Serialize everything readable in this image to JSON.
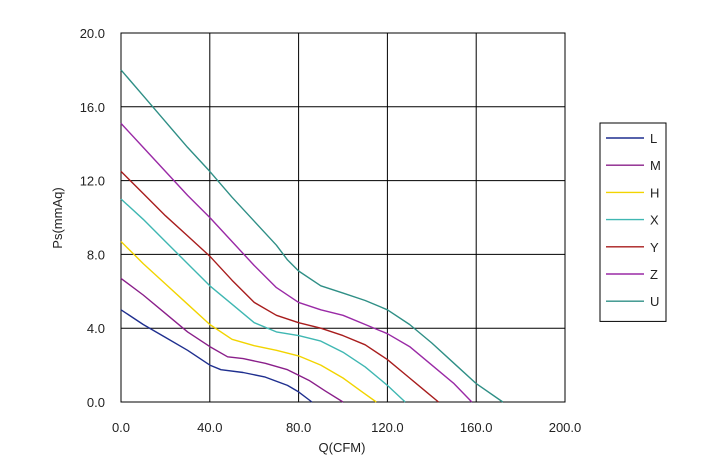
{
  "chart_data": {
    "type": "line",
    "xlabel": "Q(CFM)",
    "ylabel": "Ps(mmAq)",
    "xlim": [
      0,
      200
    ],
    "ylim": [
      0,
      20
    ],
    "x_ticks": [
      "0.0",
      "40.0",
      "80.0",
      "120.0",
      "160.0",
      "200.0"
    ],
    "y_ticks": [
      "0.0",
      "4.0",
      "8.0",
      "12.0",
      "16.0",
      "20.0"
    ],
    "grid": true,
    "legend_position": "right",
    "series": [
      {
        "name": "L",
        "color": "#1f2f8f",
        "points": [
          [
            0,
            5.0
          ],
          [
            10,
            4.2
          ],
          [
            20,
            3.5
          ],
          [
            30,
            2.8
          ],
          [
            40,
            2.0
          ],
          [
            45,
            1.75
          ],
          [
            55,
            1.6
          ],
          [
            65,
            1.35
          ],
          [
            75,
            0.9
          ],
          [
            80,
            0.55
          ],
          [
            86,
            0.0
          ]
        ]
      },
      {
        "name": "M",
        "color": "#8a1f8a",
        "points": [
          [
            0,
            6.7
          ],
          [
            10,
            5.8
          ],
          [
            20,
            4.8
          ],
          [
            30,
            3.8
          ],
          [
            40,
            3.0
          ],
          [
            48,
            2.45
          ],
          [
            55,
            2.35
          ],
          [
            65,
            2.1
          ],
          [
            75,
            1.75
          ],
          [
            85,
            1.15
          ],
          [
            92,
            0.6
          ],
          [
            100,
            0.0
          ]
        ]
      },
      {
        "name": "H",
        "color": "#f2d400",
        "points": [
          [
            0,
            8.7
          ],
          [
            10,
            7.5
          ],
          [
            20,
            6.4
          ],
          [
            30,
            5.3
          ],
          [
            40,
            4.2
          ],
          [
            50,
            3.4
          ],
          [
            60,
            3.05
          ],
          [
            70,
            2.8
          ],
          [
            80,
            2.5
          ],
          [
            90,
            2.0
          ],
          [
            100,
            1.3
          ],
          [
            108,
            0.6
          ],
          [
            115,
            0.0
          ]
        ]
      },
      {
        "name": "X",
        "color": "#3fb7b2",
        "points": [
          [
            0,
            11.0
          ],
          [
            10,
            9.9
          ],
          [
            20,
            8.7
          ],
          [
            30,
            7.5
          ],
          [
            40,
            6.3
          ],
          [
            50,
            5.3
          ],
          [
            60,
            4.3
          ],
          [
            70,
            3.8
          ],
          [
            80,
            3.6
          ],
          [
            90,
            3.3
          ],
          [
            100,
            2.7
          ],
          [
            110,
            1.9
          ],
          [
            120,
            0.9
          ],
          [
            128,
            0.0
          ]
        ]
      },
      {
        "name": "Y",
        "color": "#a81d1d",
        "points": [
          [
            0,
            12.5
          ],
          [
            10,
            11.3
          ],
          [
            20,
            10.1
          ],
          [
            30,
            9.0
          ],
          [
            40,
            7.9
          ],
          [
            50,
            6.6
          ],
          [
            60,
            5.4
          ],
          [
            70,
            4.7
          ],
          [
            80,
            4.3
          ],
          [
            90,
            4.0
          ],
          [
            100,
            3.6
          ],
          [
            110,
            3.1
          ],
          [
            120,
            2.3
          ],
          [
            130,
            1.3
          ],
          [
            138,
            0.5
          ],
          [
            143,
            0.0
          ]
        ]
      },
      {
        "name": "Z",
        "color": "#9a2aa6",
        "points": [
          [
            0,
            15.1
          ],
          [
            10,
            13.8
          ],
          [
            20,
            12.5
          ],
          [
            30,
            11.2
          ],
          [
            40,
            10.0
          ],
          [
            50,
            8.7
          ],
          [
            60,
            7.4
          ],
          [
            70,
            6.2
          ],
          [
            80,
            5.4
          ],
          [
            90,
            5.0
          ],
          [
            100,
            4.7
          ],
          [
            110,
            4.2
          ],
          [
            120,
            3.7
          ],
          [
            130,
            3.0
          ],
          [
            140,
            2.0
          ],
          [
            150,
            1.0
          ],
          [
            158,
            0.0
          ]
        ]
      },
      {
        "name": "U",
        "color": "#2f8f86",
        "points": [
          [
            0,
            18.0
          ],
          [
            10,
            16.6
          ],
          [
            20,
            15.2
          ],
          [
            30,
            13.8
          ],
          [
            40,
            12.5
          ],
          [
            50,
            11.1
          ],
          [
            60,
            9.8
          ],
          [
            70,
            8.5
          ],
          [
            75,
            7.7
          ],
          [
            80,
            7.1
          ],
          [
            90,
            6.3
          ],
          [
            100,
            5.9
          ],
          [
            110,
            5.5
          ],
          [
            120,
            5.0
          ],
          [
            130,
            4.2
          ],
          [
            140,
            3.2
          ],
          [
            150,
            2.1
          ],
          [
            160,
            1.0
          ],
          [
            172,
            0.0
          ]
        ]
      }
    ]
  }
}
